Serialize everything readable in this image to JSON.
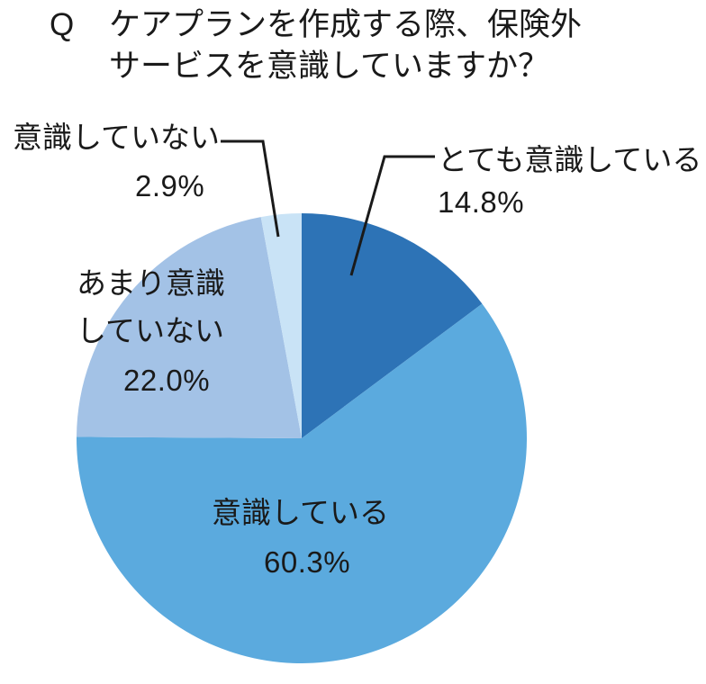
{
  "title": {
    "prefix": "Q",
    "line1": "ケアプランを作成する際、保険外",
    "line2": "サービスを意識していますか？"
  },
  "chart_data": {
    "type": "pie",
    "title": "Q ケアプランを作成する際、保険外サービスを意識していますか？",
    "start_angle_deg": 0,
    "direction": "clockwise",
    "legend_position": "callout-labels",
    "total": 100,
    "slices": [
      {
        "label": "とても意識している",
        "value": 14.8,
        "percent_text": "14.8%",
        "color": "#2d73b6"
      },
      {
        "label": "意識している",
        "value": 60.3,
        "percent_text": "60.3%",
        "color": "#5baade"
      },
      {
        "label": "あまり意識していない",
        "label_lines": [
          "あまり意識",
          "していない"
        ],
        "value": 22.0,
        "percent_text": "22.0%",
        "color": "#a3c2e6"
      },
      {
        "label": "意識していない",
        "value": 2.9,
        "percent_text": "2.9%",
        "color": "#c9e3f6"
      }
    ],
    "text_color": "#1a1a1a",
    "leader_line_color": "#1a1a1a"
  }
}
